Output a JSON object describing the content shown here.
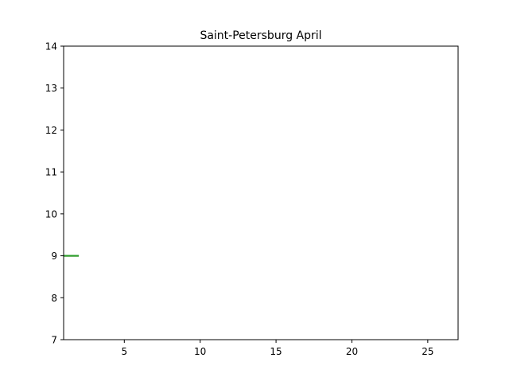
{
  "chart_data": {
    "type": "line",
    "title": "Saint-Petersburg April",
    "xlabel": "",
    "ylabel": "",
    "xlim": [
      1,
      27
    ],
    "ylim": [
      7,
      14
    ],
    "xticks": [
      5,
      10,
      15,
      20,
      25
    ],
    "yticks": [
      7,
      8,
      9,
      10,
      11,
      12,
      13,
      14
    ],
    "grid": false,
    "series": [
      {
        "color": "#1f77b4",
        "x": [
          1,
          2
        ],
        "y": [
          9,
          9
        ]
      },
      {
        "color": "#ff7f0e",
        "x": [
          1,
          2
        ],
        "y": [
          9,
          9
        ]
      },
      {
        "color": "#2ca02c",
        "x": [
          1,
          2
        ],
        "y": [
          9,
          9
        ]
      }
    ]
  }
}
